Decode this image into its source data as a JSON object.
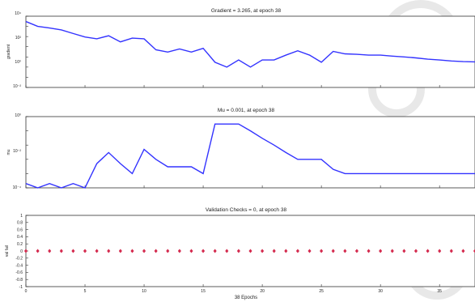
{
  "chart_data": [
    {
      "type": "line",
      "title": "Gradient = 3.265, at epoch 38",
      "ylabel": "gradient",
      "yscale": "log",
      "ylim": [
        0.01,
        100000
      ],
      "y_ticks": [
        "10⁻²",
        "10⁰",
        "10²",
        "10⁴"
      ],
      "xlim": [
        0,
        38
      ],
      "series": [
        {
          "color": "#3333ff",
          "x": [
            0,
            1,
            2,
            3,
            4,
            5,
            6,
            7,
            8,
            9,
            10,
            11,
            12,
            13,
            14,
            15,
            16,
            17,
            18,
            19,
            20,
            21,
            22,
            23,
            24,
            25,
            26,
            27,
            28,
            29,
            30,
            31,
            32,
            33,
            34,
            35,
            36,
            37,
            38
          ],
          "values": [
            30000,
            10000,
            7000,
            4500,
            2000,
            900,
            600,
            1200,
            300,
            700,
            600,
            50,
            30,
            60,
            30,
            70,
            3,
            1,
            5,
            1,
            5,
            5,
            15,
            40,
            15,
            3,
            35,
            20,
            18,
            15,
            15,
            12,
            10,
            8,
            6,
            5,
            4,
            3.5,
            3.265
          ]
        }
      ]
    },
    {
      "type": "line",
      "title": "Mu = 0.001, at epoch 38",
      "ylabel": "mu",
      "yscale": "log",
      "ylim": [
        0.0001,
        10
      ],
      "y_ticks": [
        "10⁻⁴",
        "10⁻²",
        "10⁰"
      ],
      "xlim": [
        0,
        38
      ],
      "series": [
        {
          "color": "#3333ff",
          "x": [
            0,
            1,
            2,
            3,
            4,
            5,
            6,
            7,
            8,
            9,
            10,
            11,
            12,
            13,
            14,
            15,
            16,
            17,
            18,
            19,
            20,
            21,
            22,
            23,
            24,
            25,
            26,
            27,
            28,
            29,
            30,
            31,
            32,
            33,
            34,
            35,
            36,
            37,
            38
          ],
          "values": [
            0.0002,
            0.0001,
            0.0002,
            0.0001,
            0.0002,
            0.0001,
            0.005,
            0.03,
            0.005,
            0.001,
            0.05,
            0.01,
            0.003,
            0.003,
            0.003,
            0.001,
            3,
            3,
            3,
            1,
            0.3,
            0.1,
            0.03,
            0.01,
            0.01,
            0.01,
            0.002,
            0.001,
            0.001,
            0.001,
            0.001,
            0.001,
            0.001,
            0.001,
            0.001,
            0.001,
            0.001,
            0.001,
            0.001
          ]
        }
      ]
    },
    {
      "type": "scatter",
      "title": "Validation Checks = 0, at epoch 38",
      "ylabel": "val fail",
      "xlabel": "38 Epochs",
      "ylim": [
        -1,
        1
      ],
      "y_ticks": [
        "-1",
        "-0.8",
        "-0.6",
        "-0.4",
        "-0.2",
        "0",
        "0.2",
        "0.4",
        "0.6",
        "0.8",
        "1"
      ],
      "xlim": [
        0,
        38
      ],
      "x_ticks": [
        "0",
        "5",
        "10",
        "15",
        "20",
        "25",
        "30",
        "35"
      ],
      "series": [
        {
          "color": "#d42a4e",
          "x": [
            0,
            1,
            2,
            3,
            4,
            5,
            6,
            7,
            8,
            9,
            10,
            11,
            12,
            13,
            14,
            15,
            16,
            17,
            18,
            19,
            20,
            21,
            22,
            23,
            24,
            25,
            26,
            27,
            28,
            29,
            30,
            31,
            32,
            33,
            34,
            35,
            36,
            37,
            38
          ],
          "values": [
            0,
            0,
            0,
            0,
            0,
            0,
            0,
            0,
            0,
            0,
            0,
            0,
            0,
            0,
            0,
            0,
            0,
            0,
            0,
            0,
            0,
            0,
            0,
            0,
            0,
            0,
            0,
            0,
            0,
            0,
            0,
            0,
            0,
            0,
            0,
            0,
            0,
            0,
            0
          ]
        }
      ]
    }
  ]
}
